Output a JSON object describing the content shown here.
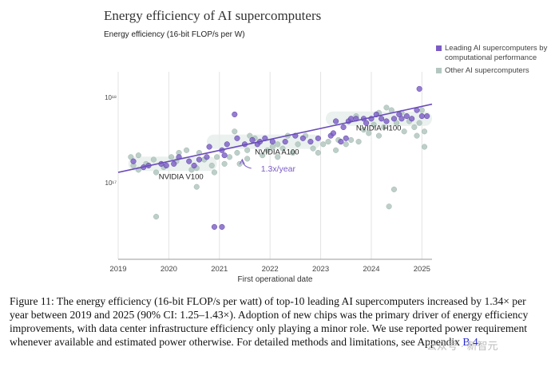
{
  "chart_data": {
    "type": "scatter",
    "title": "Energy efficiency of AI supercomputers",
    "subtitle": "Energy efficiency (16-bit FLOP/s per W)",
    "xlabel": "First operational date",
    "x_ticks": [
      "2019",
      "2020",
      "2021",
      "2022",
      "2023",
      "2024",
      "2025"
    ],
    "y_ticks": [
      "10¹⁸",
      "10¹⁷"
    ],
    "y_scale": "log",
    "xlim": [
      2019,
      2025.2
    ],
    "ylim_log10": [
      16.1,
      18.3
    ],
    "grid": "vertical",
    "legend_placement": "top-right",
    "series": [
      {
        "name": "Leading AI supercomputers by computational performance",
        "color": "#7b5cc4",
        "points": [
          [
            2019.3,
            17.25
          ],
          [
            2019.6,
            17.2
          ],
          [
            2019.85,
            17.22
          ],
          [
            2019.95,
            17.2
          ],
          [
            2020.1,
            17.22
          ],
          [
            2020.2,
            17.3
          ],
          [
            2020.4,
            17.25
          ],
          [
            2020.5,
            17.2
          ],
          [
            2020.6,
            17.27
          ],
          [
            2020.75,
            17.3
          ],
          [
            2020.9,
            16.48
          ],
          [
            2021.05,
            16.48
          ],
          [
            2020.8,
            17.42
          ],
          [
            2021.05,
            17.38
          ],
          [
            2021.15,
            17.45
          ],
          [
            2021.35,
            17.52
          ],
          [
            2021.5,
            17.45
          ],
          [
            2021.65,
            17.5
          ],
          [
            2021.75,
            17.45
          ],
          [
            2021.8,
            17.48
          ],
          [
            2021.9,
            17.52
          ],
          [
            2022.05,
            17.48
          ],
          [
            2022.3,
            17.48
          ],
          [
            2022.5,
            17.55
          ],
          [
            2022.65,
            17.52
          ],
          [
            2022.8,
            17.48
          ],
          [
            2022.95,
            17.52
          ],
          [
            2023.2,
            17.55
          ],
          [
            2023.4,
            17.48
          ],
          [
            2023.5,
            17.52
          ],
          [
            2023.25,
            17.58
          ],
          [
            2023.3,
            17.72
          ],
          [
            2023.45,
            17.65
          ],
          [
            2023.55,
            17.72
          ],
          [
            2023.6,
            17.75
          ],
          [
            2023.7,
            17.75
          ],
          [
            2023.85,
            17.75
          ],
          [
            2023.9,
            17.7
          ],
          [
            2024.0,
            17.75
          ],
          [
            2024.1,
            17.8
          ],
          [
            2024.2,
            17.75
          ],
          [
            2024.3,
            17.72
          ],
          [
            2024.45,
            17.75
          ],
          [
            2024.55,
            17.8
          ],
          [
            2024.6,
            17.75
          ],
          [
            2024.7,
            17.78
          ],
          [
            2024.8,
            17.75
          ],
          [
            2024.9,
            17.85
          ],
          [
            2024.95,
            18.1
          ],
          [
            2025.0,
            17.78
          ],
          [
            2025.1,
            17.78
          ],
          [
            2021.3,
            17.8
          ],
          [
            2021.1,
            17.32
          ],
          [
            2019.5,
            17.18
          ]
        ]
      },
      {
        "name": "Other AI supercomputers",
        "color": "#b3c7c0",
        "points": [
          [
            2019.25,
            17.3
          ],
          [
            2019.3,
            17.2
          ],
          [
            2019.4,
            17.15
          ],
          [
            2019.55,
            17.22
          ],
          [
            2019.7,
            17.27
          ],
          [
            2019.75,
            17.12
          ],
          [
            2019.9,
            17.18
          ],
          [
            2020.05,
            17.3
          ],
          [
            2020.15,
            17.25
          ],
          [
            2020.2,
            17.35
          ],
          [
            2020.35,
            17.38
          ],
          [
            2020.45,
            17.15
          ],
          [
            2020.55,
            17.17
          ],
          [
            2020.6,
            17.35
          ],
          [
            2020.7,
            17.27
          ],
          [
            2020.85,
            17.2
          ],
          [
            2020.95,
            17.3
          ],
          [
            2021.1,
            17.22
          ],
          [
            2021.2,
            17.3
          ],
          [
            2021.35,
            17.35
          ],
          [
            2021.4,
            17.22
          ],
          [
            2021.55,
            17.38
          ],
          [
            2021.6,
            17.55
          ],
          [
            2021.7,
            17.52
          ],
          [
            2021.85,
            17.32
          ],
          [
            2021.95,
            17.38
          ],
          [
            2022.05,
            17.42
          ],
          [
            2022.15,
            17.45
          ],
          [
            2022.25,
            17.4
          ],
          [
            2022.35,
            17.55
          ],
          [
            2022.45,
            17.35
          ],
          [
            2022.55,
            17.45
          ],
          [
            2022.7,
            17.55
          ],
          [
            2022.85,
            17.4
          ],
          [
            2022.95,
            17.35
          ],
          [
            2023.05,
            17.45
          ],
          [
            2023.15,
            17.48
          ],
          [
            2023.3,
            17.38
          ],
          [
            2023.35,
            17.5
          ],
          [
            2023.5,
            17.45
          ],
          [
            2023.6,
            17.5
          ],
          [
            2023.75,
            17.48
          ],
          [
            2023.85,
            17.62
          ],
          [
            2023.95,
            17.58
          ],
          [
            2024.05,
            17.68
          ],
          [
            2024.15,
            17.82
          ],
          [
            2024.25,
            17.65
          ],
          [
            2024.3,
            17.88
          ],
          [
            2024.4,
            17.85
          ],
          [
            2024.5,
            17.7
          ],
          [
            2024.6,
            17.82
          ],
          [
            2024.75,
            17.72
          ],
          [
            2024.85,
            17.65
          ],
          [
            2024.95,
            17.7
          ],
          [
            2025.05,
            17.6
          ],
          [
            2025.0,
            17.85
          ],
          [
            2024.9,
            17.55
          ],
          [
            2025.05,
            17.42
          ],
          [
            2024.35,
            16.72
          ],
          [
            2024.45,
            16.92
          ],
          [
            2019.75,
            16.6
          ],
          [
            2020.55,
            16.95
          ],
          [
            2021.3,
            17.6
          ],
          [
            2024.15,
            17.55
          ],
          [
            2019.4,
            17.32
          ],
          [
            2020.9,
            17.12
          ],
          [
            2022.15,
            17.3
          ],
          [
            2021.55,
            17.28
          ],
          [
            2023.7,
            17.78
          ],
          [
            2024.65,
            17.6
          ]
        ]
      }
    ],
    "trend": {
      "x": [
        2019,
        2025.2
      ],
      "y_log10": [
        17.12,
        17.92
      ],
      "color": "#6b4cbc"
    },
    "bands": [
      {
        "x": [
          2019.2,
          2020.95
        ],
        "y_log10": 17.22
      },
      {
        "x": [
          2020.75,
          2023.0
        ],
        "y_log10": 17.48
      },
      {
        "x": [
          2023.1,
          2025.2
        ],
        "y_log10": 17.75
      }
    ],
    "annotations": [
      {
        "text": "NVIDIA V100",
        "x": 2019.8,
        "y_log10": 17.04
      },
      {
        "text": "NVIDIA A100",
        "x": 2021.7,
        "y_log10": 17.33
      },
      {
        "text": "NVIDIA H100",
        "x": 2023.7,
        "y_log10": 17.61
      },
      {
        "text": "1.3x/year",
        "x": 2021.82,
        "y_log10": 17.13,
        "color": "#7b5cc4"
      }
    ]
  },
  "caption": {
    "text_before_link": "Figure 11: The energy efficiency (16-bit FLOP/s per watt) of top-10 leading AI supercomputers increased by 1.34× per year between 2019 and 2025 (90% CI: 1.25–1.43×). Adoption of new chips was the primary driver of energy efficiency improvements, with data center infrastructure efficiency only playing a minor role. We use reported power requirement whenever available and estimated power otherwise. For detailed methods and limitations, see Appendix ",
    "link": "B.4",
    "text_after_link": "."
  },
  "watermark": "公众号 · 新智元"
}
